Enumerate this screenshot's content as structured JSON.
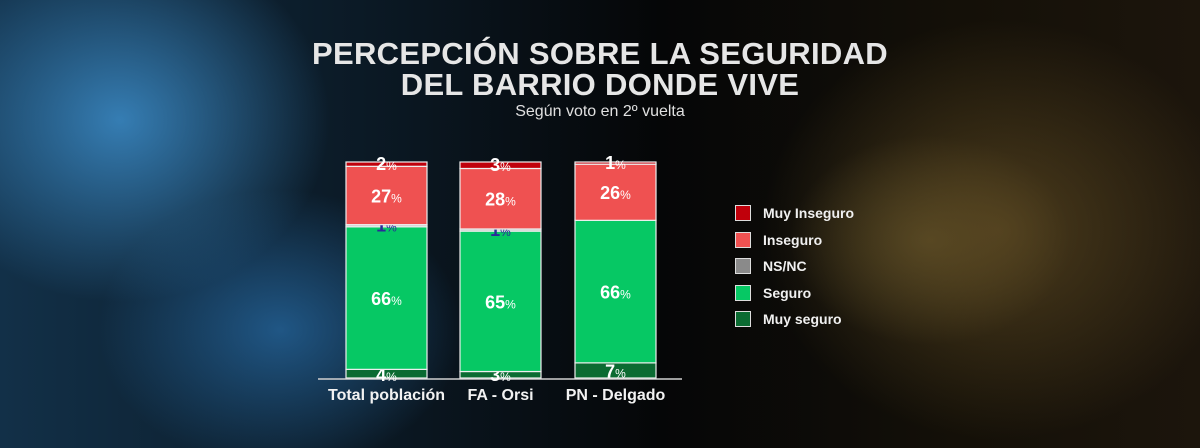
{
  "chart_data": {
    "type": "bar",
    "stacked": true,
    "title_line1": "PERCEPCIÓN SOBRE LA SEGURIDAD",
    "title_line2": "DEL BARRIO DONDE VIVE",
    "subtitle": "Según voto en 2º vuelta",
    "categories": [
      "Total población",
      "FA - Orsi",
      "PN - Delgado"
    ],
    "series": [
      {
        "name": "Muy seguro",
        "color": "#0b6b32",
        "label_color": "#ffffff",
        "values": [
          4,
          3,
          7
        ]
      },
      {
        "name": "Seguro",
        "color": "#06c864",
        "label_color": "#ffffff",
        "values": [
          66,
          65,
          66
        ]
      },
      {
        "name": "NS/NC",
        "color": "#c8c8c8",
        "label_color": "#2a2a9a",
        "values": [
          1,
          1,
          0
        ]
      },
      {
        "name": "Inseguro",
        "color": "#ef5151",
        "label_color": "#ffffff",
        "values": [
          27,
          28,
          26
        ]
      },
      {
        "name": "Muy Inseguro",
        "color": "#c0000b",
        "label_color": "#ffffff",
        "values": [
          2,
          3,
          1
        ]
      }
    ],
    "legend_order": [
      "Muy Inseguro",
      "Inseguro",
      "NS/NC",
      "Seguro",
      "Muy seguro"
    ],
    "legend_position": "right",
    "ylim": [
      0,
      100
    ],
    "unit": "%"
  }
}
